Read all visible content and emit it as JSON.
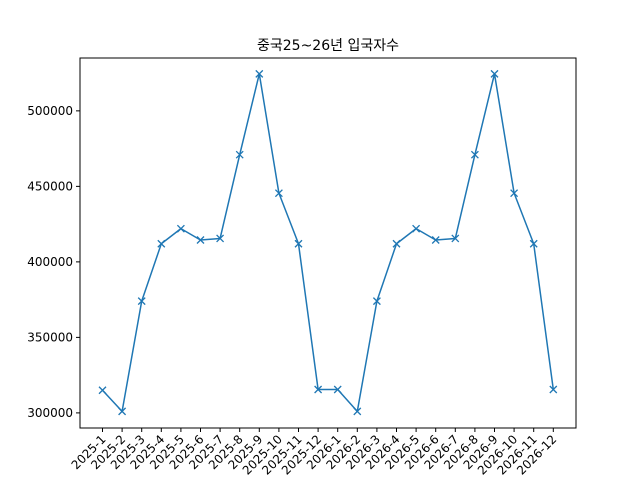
{
  "chart_data": {
    "type": "line",
    "title": "중국25~26년 입국자수",
    "xlabel": "",
    "ylabel": "",
    "categories": [
      "2025-1",
      "2025-2",
      "2025-3",
      "2025-4",
      "2025-5",
      "2025-6",
      "2025-7",
      "2025-8",
      "2025-9",
      "2025-10",
      "2025-11",
      "2025-12",
      "2026-1",
      "2026-2",
      "2026-3",
      "2026-4",
      "2026-5",
      "2026-6",
      "2026-7",
      "2026-8",
      "2026-9",
      "2026-10",
      "2026-11",
      "2026-12"
    ],
    "series": [
      {
        "values": [
          315000,
          301000,
          374000,
          412000,
          422000,
          414500,
          415500,
          471000,
          524500,
          445500,
          412000,
          315500,
          315500,
          301000,
          374000,
          412000,
          422000,
          414500,
          415500,
          471000,
          524500,
          445500,
          412000,
          315500
        ],
        "color": "#1f77b4",
        "marker": "x"
      }
    ],
    "yticks": [
      300000,
      350000,
      400000,
      450000,
      500000
    ],
    "ylim": [
      290000,
      535000
    ],
    "grid": false,
    "legend": "none"
  }
}
